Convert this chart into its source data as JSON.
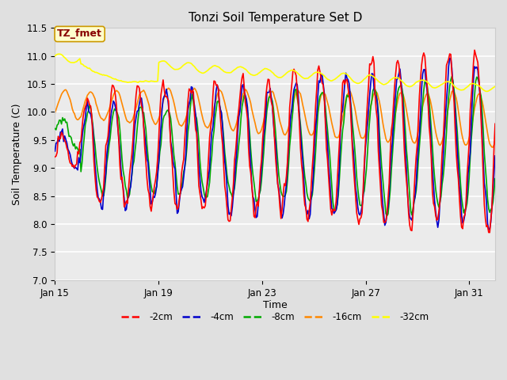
{
  "title": "Tonzi Soil Temperature Set D",
  "xlabel": "Time",
  "ylabel": "Soil Temperature (C)",
  "ylim": [
    7.0,
    11.5
  ],
  "yticks": [
    7.0,
    7.5,
    8.0,
    8.5,
    9.0,
    9.5,
    10.0,
    10.5,
    11.0,
    11.5
  ],
  "xtick_labels": [
    "Jan 15",
    "Jan 19",
    "Jan 23",
    "Jan 27",
    "Jan 31"
  ],
  "xtick_pos": [
    0,
    4,
    8,
    12,
    16
  ],
  "xlim": [
    0,
    17
  ],
  "bg_color": "#e0e0e0",
  "plot_bg": "#ebebeb",
  "label_box_text": "TZ_fmet",
  "label_box_facecolor": "#ffffcc",
  "label_box_edgecolor": "#cc9900",
  "label_box_textcolor": "#880000",
  "line_colors": [
    "#ff0000",
    "#0000cc",
    "#00aa00",
    "#ff8800",
    "#ffff00"
  ],
  "line_labels": [
    "-2cm",
    "-4cm",
    "-8cm",
    "-16cm",
    "-32cm"
  ],
  "line_width": 1.2,
  "figsize": [
    6.4,
    4.8
  ],
  "dpi": 100
}
